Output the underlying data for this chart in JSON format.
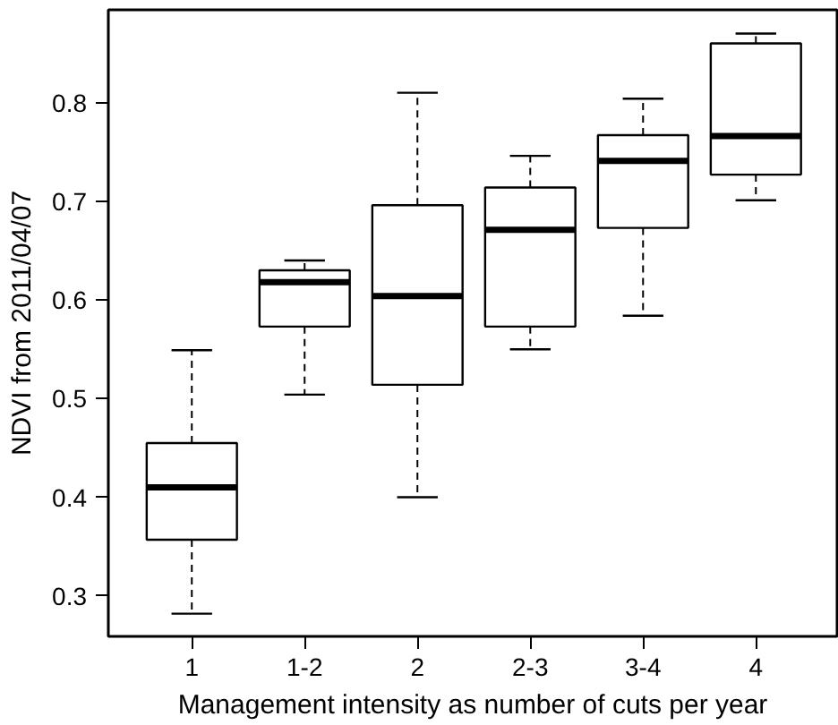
{
  "chart_data": {
    "type": "box",
    "xlabel": "Management intensity as number of cuts per year",
    "ylabel": "NDVI from 2011/04/07",
    "categories": [
      "1",
      "1-2",
      "2",
      "2-3",
      "3-4",
      "4"
    ],
    "boxes": [
      {
        "low": 0.282,
        "q1": 0.357,
        "median": 0.41,
        "q3": 0.455,
        "high": 0.549
      },
      {
        "low": 0.504,
        "q1": 0.573,
        "median": 0.618,
        "q3": 0.63,
        "high": 0.64
      },
      {
        "low": 0.4,
        "q1": 0.514,
        "median": 0.604,
        "q3": 0.696,
        "high": 0.81
      },
      {
        "low": 0.55,
        "q1": 0.573,
        "median": 0.671,
        "q3": 0.714,
        "high": 0.746
      },
      {
        "low": 0.584,
        "q1": 0.673,
        "median": 0.741,
        "q3": 0.767,
        "high": 0.804
      },
      {
        "low": 0.701,
        "q1": 0.727,
        "median": 0.766,
        "q3": 0.86,
        "high": 0.87
      }
    ],
    "ylim": [
      0.259,
      0.894
    ],
    "yticks": [
      0.3,
      0.4,
      0.5,
      0.6,
      0.7,
      0.8
    ],
    "grid": false
  }
}
